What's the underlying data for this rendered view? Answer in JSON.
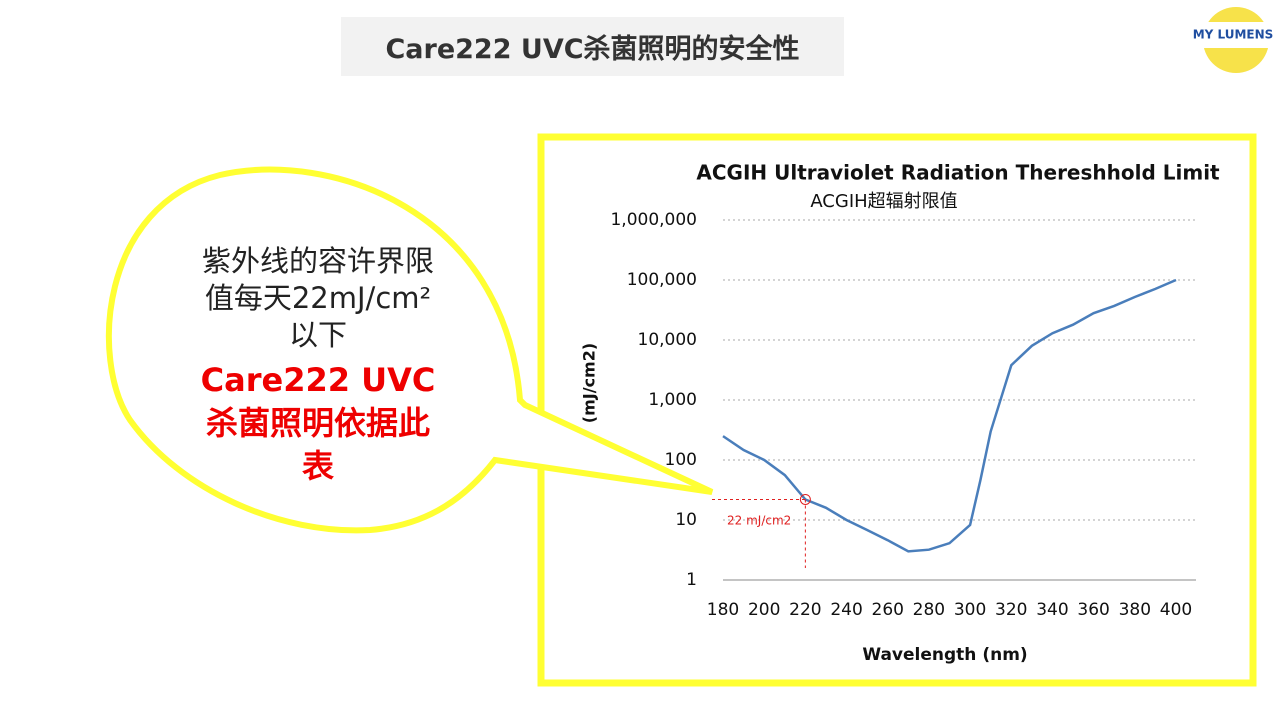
{
  "slide_title": "Care222 UVC杀菌照明的安全性",
  "logo": "MY LUMENS",
  "callout": {
    "lines": [
      "紫外线的容许界限",
      "值每天22mJ/cm²",
      "以下"
    ],
    "emphasis_lines": [
      "Care222 UVC",
      "杀菌照明依据此",
      "表"
    ]
  },
  "chart_data": {
    "type": "line",
    "title": "ACGIH Ultraviolet Radiation Thereshhold Limit",
    "subtitle": "ACGIH超辐射限值",
    "x_label": "Wavelength (nm)",
    "y_label": "(mJ/cm2)",
    "x": [
      180,
      190,
      200,
      210,
      220,
      230,
      240,
      250,
      260,
      270,
      280,
      290,
      300,
      305,
      310,
      320,
      330,
      340,
      350,
      360,
      370,
      380,
      390,
      400
    ],
    "values": [
      250,
      147,
      100,
      56,
      22,
      16,
      10,
      6.8,
      4.6,
      3.0,
      3.2,
      4.1,
      8.3,
      46,
      300,
      3800,
      8000,
      13000,
      18000,
      28000,
      37000,
      52000,
      71000,
      100000
    ],
    "color": "#4a7ebb",
    "xlim": [
      180,
      400
    ],
    "xticks": [
      180,
      200,
      220,
      240,
      260,
      280,
      300,
      320,
      340,
      360,
      380,
      400
    ],
    "ylim": [
      1,
      1000000
    ],
    "y_scale": "log",
    "yticks": [
      1,
      10,
      100,
      {
        "value": 1000,
        "label": "1,000"
      },
      {
        "value": 10000,
        "label": "10,000"
      },
      {
        "value": 100000,
        "label": "100,000"
      },
      {
        "value": 1000000,
        "label": "1,000,000"
      }
    ],
    "grid": true,
    "annotation": {
      "text": "22 mJ/cm2",
      "x": 220,
      "y": 22,
      "color": "#e02020"
    }
  }
}
